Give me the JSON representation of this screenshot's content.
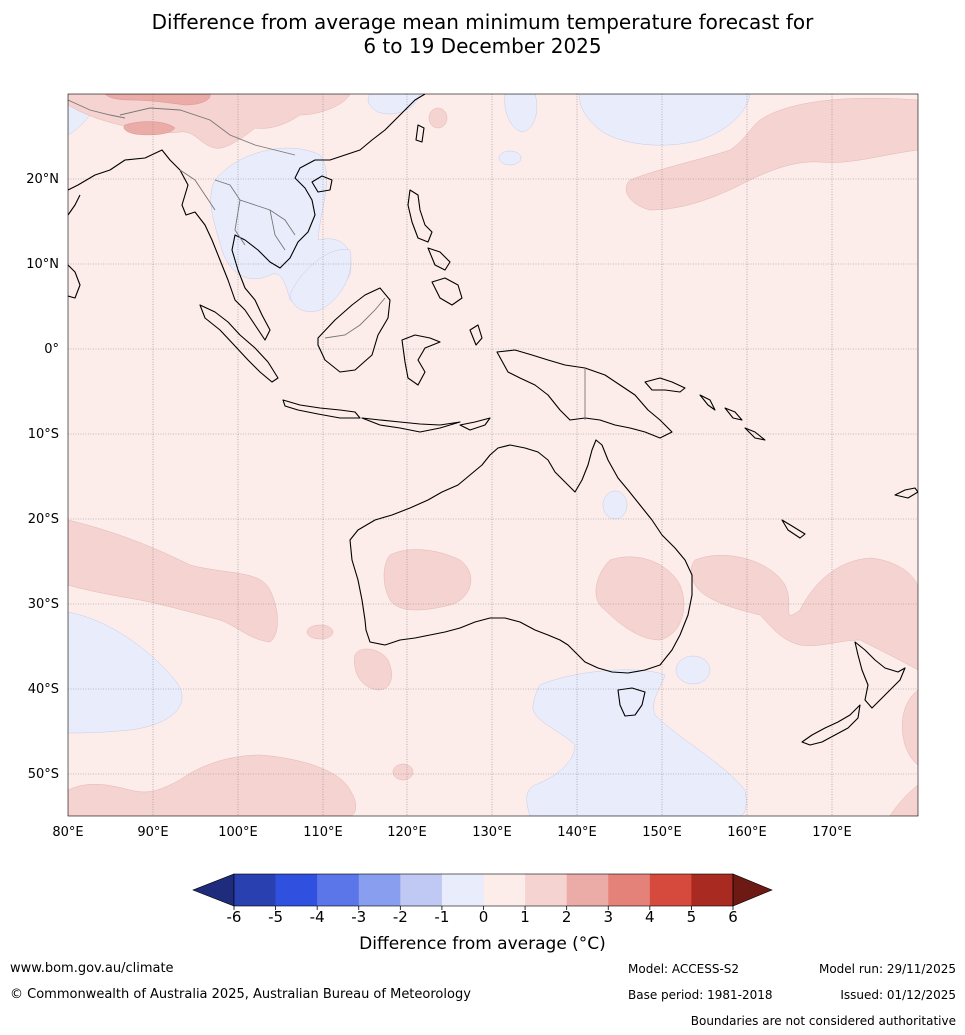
{
  "title": {
    "line1": "Difference from average mean minimum temperature forecast for",
    "line2": "6 to 19 December 2025"
  },
  "axes": {
    "lon_labels": [
      "80°E",
      "90°E",
      "100°E",
      "110°E",
      "120°E",
      "130°E",
      "140°E",
      "150°E",
      "160°E",
      "170°E"
    ],
    "lat_labels": [
      "20°N",
      "10°N",
      "0°",
      "10°S",
      "20°S",
      "30°S",
      "40°S",
      "50°S"
    ]
  },
  "colorbar": {
    "ticks": [
      "-6",
      "-5",
      "-4",
      "-3",
      "-2",
      "-1",
      "0",
      "1",
      "2",
      "3",
      "4",
      "5",
      "6"
    ],
    "label": "Difference from average (°C)",
    "colors": {
      "below_min": "#1f2c7e",
      "bins": [
        "#2840b0",
        "#3050e0",
        "#5a76e8",
        "#8a9ef0",
        "#c0c8f4",
        "#e8ecfb",
        "#fcecea",
        "#f5d3d0",
        "#ebaba6",
        "#e4827a",
        "#d64a3e",
        "#a82a20"
      ],
      "above_max": "#6e1a14"
    }
  },
  "map_colors": {
    "ocean_base": "#fcecea",
    "warm_1_2": "#f5d3d0",
    "warm_2_3": "#ebaba6",
    "cool_0_1": "#e8ecfb"
  },
  "footer": {
    "website": "www.bom.gov.au/climate",
    "copyright": "© Commonwealth of Australia 2025, Australian Bureau of Meteorology",
    "model": "Model: ACCESS-S2",
    "base_period": "Base period: 1981-2018",
    "model_run": "Model run: 29/11/2025",
    "issued": "Issued: 01/12/2025",
    "disclaimer": "Boundaries are not considered authoritative"
  }
}
